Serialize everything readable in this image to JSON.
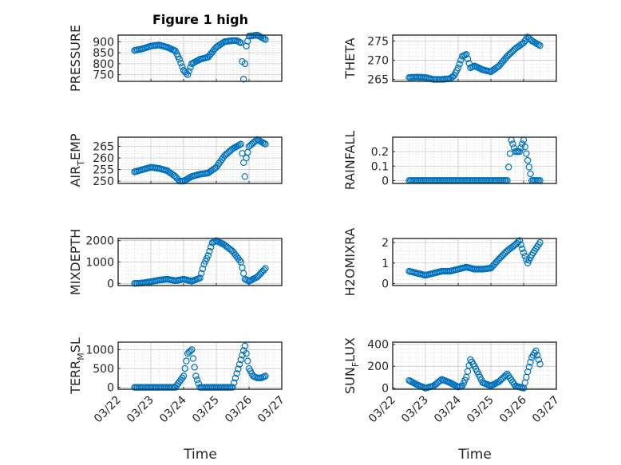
{
  "figure": {
    "title": "Figure 1 high",
    "xlabel": "Time"
  },
  "style": {
    "marker_color": "#0072BD",
    "axes_color": "#262626",
    "grid_color": "#c8c8c8"
  },
  "x_ticks": [
    "03/22",
    "03/23",
    "03/24",
    "03/25",
    "03/26",
    "03/27"
  ],
  "chart_data": [
    {
      "type": "scatter",
      "name": "pressure",
      "ylabel": "PRESSURE",
      "ylim": [
        720,
        930
      ],
      "yticks": [
        750,
        800,
        850,
        900
      ],
      "grid": true,
      "x": [
        "03/22 12:00",
        "03/22 18:00",
        "03/23 00:00",
        "03/23 06:00",
        "03/23 12:00",
        "03/23 18:00",
        "03/23 21:00",
        "03/24 00:00",
        "03/24 03:00",
        "03/24 06:00",
        "03/24 12:00",
        "03/24 18:00",
        "03/25 00:00",
        "03/25 06:00",
        "03/25 12:00",
        "03/25 15:00",
        "03/25 18:00",
        "03/25 19:00",
        "03/25 20:00",
        "03/25 21:00",
        "03/25 22:00",
        "03/26 00:00",
        "03/26 06:00",
        "03/26 12:00"
      ],
      "y": [
        860,
        868,
        880,
        885,
        875,
        858,
        820,
        770,
        750,
        800,
        820,
        830,
        875,
        900,
        905,
        905,
        895,
        810,
        730,
        800,
        880,
        925,
        930,
        910
      ]
    },
    {
      "type": "scatter",
      "name": "theta",
      "ylabel": "THETA",
      "ylim": [
        264.5,
        276.5
      ],
      "yticks": [
        265,
        270,
        275
      ],
      "grid": true,
      "x": [
        "03/22 12:00",
        "03/22 18:00",
        "03/23 00:00",
        "03/23 06:00",
        "03/23 12:00",
        "03/23 18:00",
        "03/23 21:00",
        "03/24 00:00",
        "03/24 03:00",
        "03/24 06:00",
        "03/24 09:00",
        "03/24 12:00",
        "03/24 18:00",
        "03/25 00:00",
        "03/25 06:00",
        "03/25 12:00",
        "03/25 18:00",
        "03/26 00:00",
        "03/26 03:00",
        "03/26 06:00",
        "03/26 12:00"
      ],
      "y": [
        265.5,
        265.6,
        265.5,
        265.0,
        265.0,
        265.2,
        266.0,
        268.0,
        271.0,
        271.5,
        268.0,
        268.5,
        267.5,
        267.0,
        268.5,
        271.0,
        273.0,
        274.5,
        276.0,
        275.0,
        273.8
      ]
    },
    {
      "type": "scatter",
      "name": "air_temp",
      "ylabel": "AIR_TEMP",
      "ylim": [
        249,
        269
      ],
      "yticks": [
        250,
        255,
        260,
        265
      ],
      "grid": true,
      "x": [
        "03/22 12:00",
        "03/22 18:00",
        "03/23 00:00",
        "03/23 06:00",
        "03/23 12:00",
        "03/23 18:00",
        "03/23 21:00",
        "03/24 00:00",
        "03/24 03:00",
        "03/24 06:00",
        "03/24 12:00",
        "03/24 18:00",
        "03/25 00:00",
        "03/25 06:00",
        "03/25 12:00",
        "03/25 18:00",
        "03/25 19:00",
        "03/25 20:00",
        "03/25 21:00",
        "03/25 22:00",
        "03/26 00:00",
        "03/26 06:00",
        "03/26 12:00"
      ],
      "y": [
        254,
        255,
        256,
        255.5,
        254.5,
        252,
        250,
        250,
        251,
        252,
        253,
        253.5,
        256,
        261,
        264,
        266,
        262,
        258,
        252,
        260,
        265,
        268,
        266
      ]
    },
    {
      "type": "scatter",
      "name": "rainfall",
      "ylabel": "RAINFALL",
      "ylim": [
        -0.02,
        0.3
      ],
      "yticks": [
        0,
        0.1,
        0.2
      ],
      "grid": true,
      "x": [
        "03/22 12:00",
        "03/23 00:00",
        "03/23 12:00",
        "03/24 00:00",
        "03/24 12:00",
        "03/25 00:00",
        "03/25 12:00",
        "03/25 15:00",
        "03/25 18:00",
        "03/25 21:00",
        "03/26 00:00",
        "03/26 06:00",
        "03/26 12:00"
      ],
      "y": [
        0,
        0,
        0,
        0,
        0,
        0,
        0,
        0.28,
        0.2,
        0.2,
        0.28,
        0,
        0
      ]
    },
    {
      "type": "scatter",
      "name": "mixdepth",
      "ylabel": "MIXDEPTH",
      "ylim": [
        -100,
        2100
      ],
      "yticks": [
        0,
        1000,
        2000
      ],
      "grid": true,
      "x": [
        "03/22 12:00",
        "03/22 18:00",
        "03/23 00:00",
        "03/23 06:00",
        "03/23 12:00",
        "03/23 18:00",
        "03/24 00:00",
        "03/24 06:00",
        "03/24 12:00",
        "03/24 15:00",
        "03/24 18:00",
        "03/24 21:00",
        "03/25 00:00",
        "03/25 06:00",
        "03/25 12:00",
        "03/25 18:00",
        "03/25 21:00",
        "03/26 00:00",
        "03/26 06:00",
        "03/26 12:00"
      ],
      "y": [
        0,
        20,
        80,
        150,
        200,
        120,
        200,
        100,
        250,
        900,
        1300,
        1900,
        2000,
        1800,
        1500,
        1000,
        200,
        100,
        300,
        700
      ]
    },
    {
      "type": "scatter",
      "name": "h2omixra",
      "ylabel": "H2OMIXRA",
      "ylim": [
        -0.1,
        2.2
      ],
      "yticks": [
        0,
        1,
        2
      ],
      "grid": true,
      "x": [
        "03/22 12:00",
        "03/22 18:00",
        "03/23 00:00",
        "03/23 06:00",
        "03/23 12:00",
        "03/23 18:00",
        "03/24 00:00",
        "03/24 06:00",
        "03/24 12:00",
        "03/24 18:00",
        "03/25 00:00",
        "03/25 06:00",
        "03/25 12:00",
        "03/25 18:00",
        "03/25 21:00",
        "03/26 00:00",
        "03/26 03:00",
        "03/26 06:00",
        "03/26 12:00"
      ],
      "y": [
        0.6,
        0.5,
        0.4,
        0.5,
        0.6,
        0.6,
        0.7,
        0.8,
        0.7,
        0.7,
        0.75,
        1.2,
        1.6,
        1.9,
        2.1,
        1.5,
        1.0,
        1.4,
        2.0
      ]
    },
    {
      "type": "scatter",
      "name": "terr_msl",
      "ylabel": "TERR_MSL",
      "ylim": [
        -50,
        1200
      ],
      "yticks": [
        0,
        500,
        1000
      ],
      "grid": true,
      "x": [
        "03/22 12:00",
        "03/23 00:00",
        "03/23 12:00",
        "03/23 18:00",
        "03/24 00:00",
        "03/24 03:00",
        "03/24 06:00",
        "03/24 09:00",
        "03/24 12:00",
        "03/24 18:00",
        "03/25 00:00",
        "03/25 12:00",
        "03/25 21:00",
        "03/26 00:00",
        "03/26 03:00",
        "03/26 06:00",
        "03/26 09:00",
        "03/26 12:00"
      ],
      "y": [
        0,
        0,
        0,
        0,
        300,
        900,
        1000,
        300,
        0,
        0,
        0,
        0,
        1100,
        500,
        300,
        250,
        250,
        300
      ]
    },
    {
      "type": "scatter",
      "name": "sun_flux",
      "ylabel": "SUN_FLUX",
      "ylim": [
        -10,
        420
      ],
      "yticks": [
        0,
        200,
        400
      ],
      "grid": true,
      "x": [
        "03/22 12:00",
        "03/22 18:00",
        "03/23 00:00",
        "03/23 06:00",
        "03/23 12:00",
        "03/23 18:00",
        "03/24 00:00",
        "03/24 03:00",
        "03/24 06:00",
        "03/24 09:00",
        "03/24 12:00",
        "03/24 18:00",
        "03/25 00:00",
        "03/25 06:00",
        "03/25 12:00",
        "03/25 18:00",
        "03/26 00:00",
        "03/26 03:00",
        "03/26 06:00",
        "03/26 09:00",
        "03/26 12:00"
      ],
      "y": [
        70,
        30,
        0,
        20,
        80,
        50,
        10,
        20,
        100,
        260,
        200,
        50,
        20,
        60,
        130,
        20,
        0,
        150,
        280,
        340,
        220
      ]
    }
  ]
}
